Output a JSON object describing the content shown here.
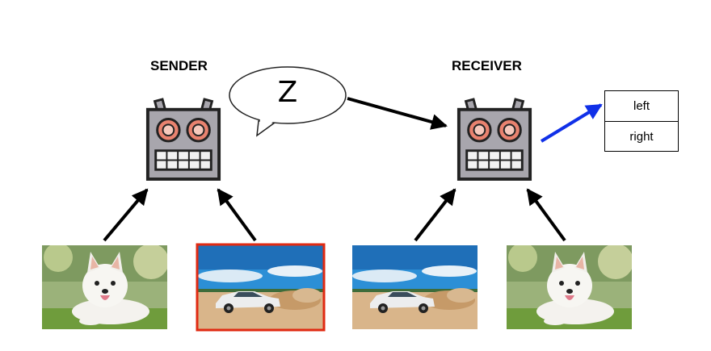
{
  "sender": {
    "label": "SENDER"
  },
  "receiver": {
    "label": "RECEIVER"
  },
  "message": {
    "symbol": "Z"
  },
  "choices": [
    {
      "label": "left"
    },
    {
      "label": "right"
    }
  ],
  "images": [
    {
      "subject": "dog-photo",
      "role": "sender-input",
      "highlighted": false
    },
    {
      "subject": "car-photo",
      "role": "sender-target",
      "highlighted": true
    },
    {
      "subject": "car-photo",
      "role": "receiver-input",
      "highlighted": false
    },
    {
      "subject": "dog-photo",
      "role": "receiver-input",
      "highlighted": false
    }
  ],
  "colors": {
    "robot_body": "#a8a6ad",
    "robot_eye": "#e9826f",
    "highlight_border": "#e02a12",
    "choice_arrow": "#1030e8",
    "arrow": "#000000"
  }
}
